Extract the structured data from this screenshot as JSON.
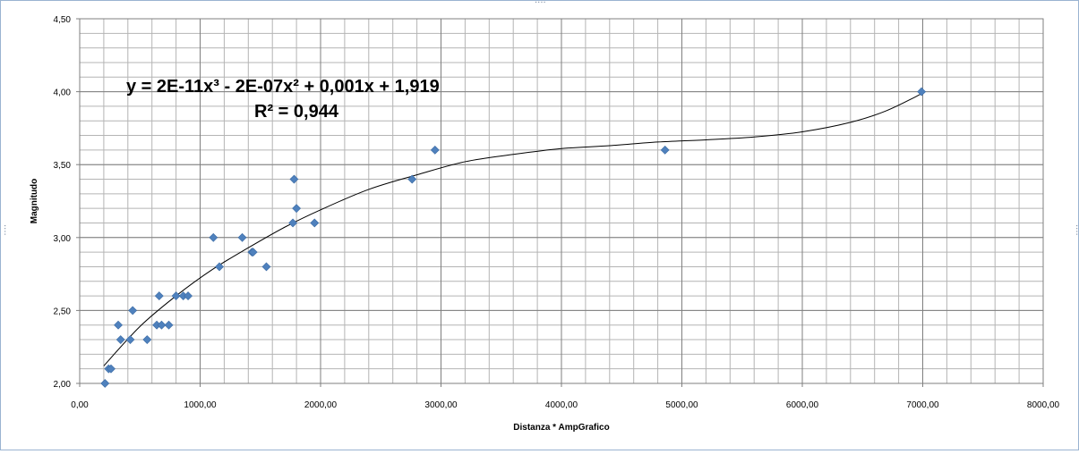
{
  "chart_data": {
    "type": "scatter",
    "title": "",
    "xlabel": "Distanza * AmpGrafico",
    "ylabel": "Magnitudo",
    "xlim": [
      0,
      8000
    ],
    "ylim": [
      2.0,
      4.5
    ],
    "x_tick_labels": [
      "0,00",
      "1000,00",
      "2000,00",
      "3000,00",
      "4000,00",
      "5000,00",
      "6000,00",
      "7000,00",
      "8000,00"
    ],
    "y_tick_labels": [
      "2,00",
      "2,50",
      "3,00",
      "3,50",
      "4,00",
      "4,50"
    ],
    "x_ticks": [
      0,
      1000,
      2000,
      3000,
      4000,
      5000,
      6000,
      7000,
      8000
    ],
    "y_ticks": [
      2.0,
      2.5,
      3.0,
      3.5,
      4.0,
      4.5
    ],
    "grid": true,
    "marker_color": "#4f81bd",
    "trendline_color": "#000000",
    "points": [
      {
        "x": 210,
        "y": 2.0
      },
      {
        "x": 240,
        "y": 2.1
      },
      {
        "x": 260,
        "y": 2.1
      },
      {
        "x": 320,
        "y": 2.4
      },
      {
        "x": 340,
        "y": 2.3
      },
      {
        "x": 420,
        "y": 2.3
      },
      {
        "x": 440,
        "y": 2.5
      },
      {
        "x": 560,
        "y": 2.3
      },
      {
        "x": 640,
        "y": 2.4
      },
      {
        "x": 660,
        "y": 2.6
      },
      {
        "x": 680,
        "y": 2.4
      },
      {
        "x": 740,
        "y": 2.4
      },
      {
        "x": 800,
        "y": 2.6
      },
      {
        "x": 860,
        "y": 2.6
      },
      {
        "x": 900,
        "y": 2.6
      },
      {
        "x": 1110,
        "y": 3.0
      },
      {
        "x": 1160,
        "y": 2.8
      },
      {
        "x": 1350,
        "y": 3.0
      },
      {
        "x": 1430,
        "y": 2.9
      },
      {
        "x": 1440,
        "y": 2.9
      },
      {
        "x": 1550,
        "y": 2.8
      },
      {
        "x": 1770,
        "y": 3.1
      },
      {
        "x": 1780,
        "y": 3.4
      },
      {
        "x": 1800,
        "y": 3.2
      },
      {
        "x": 1950,
        "y": 3.1
      },
      {
        "x": 2760,
        "y": 3.4
      },
      {
        "x": 2950,
        "y": 3.6
      },
      {
        "x": 4860,
        "y": 3.6
      },
      {
        "x": 6990,
        "y": 4.0
      }
    ],
    "trendline": {
      "type": "polynomial",
      "degree": 3,
      "samples": [
        {
          "x": 200,
          "y": 2.12
        },
        {
          "x": 500,
          "y": 2.39
        },
        {
          "x": 800,
          "y": 2.6
        },
        {
          "x": 1100,
          "y": 2.78
        },
        {
          "x": 1400,
          "y": 2.93
        },
        {
          "x": 1700,
          "y": 3.07
        },
        {
          "x": 2000,
          "y": 3.19
        },
        {
          "x": 2400,
          "y": 3.33
        },
        {
          "x": 2800,
          "y": 3.43
        },
        {
          "x": 3200,
          "y": 3.52
        },
        {
          "x": 3600,
          "y": 3.57
        },
        {
          "x": 4000,
          "y": 3.61
        },
        {
          "x": 4400,
          "y": 3.63
        },
        {
          "x": 4800,
          "y": 3.655
        },
        {
          "x": 5200,
          "y": 3.67
        },
        {
          "x": 5600,
          "y": 3.69
        },
        {
          "x": 6000,
          "y": 3.725
        },
        {
          "x": 6400,
          "y": 3.79
        },
        {
          "x": 6700,
          "y": 3.87
        },
        {
          "x": 7000,
          "y": 3.99
        }
      ]
    },
    "equation_text": "y = 2E-11x³ - 2E-07x² + 0,001x + 1,919",
    "r2_text": "R² = 0,944"
  }
}
